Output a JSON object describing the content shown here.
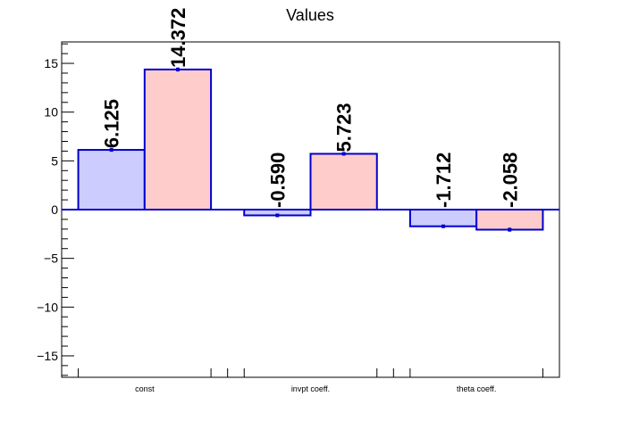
{
  "chart_data": {
    "type": "bar",
    "title": "Values",
    "categories": [
      "const",
      "invpt coeff.",
      "theta coeff."
    ],
    "series": [
      {
        "values": [
          6.125,
          -0.59,
          -1.712
        ],
        "labels": [
          "6.125",
          "-0.590",
          "-1.712"
        ],
        "errors": [
          0,
          0,
          0
        ],
        "fill": "#ccccff",
        "stroke": "#0000cc"
      },
      {
        "values": [
          14.372,
          5.723,
          -2.058
        ],
        "labels": [
          "14.372",
          "5.723",
          "-2.058"
        ],
        "errors": [
          0.2,
          0.1,
          0.2
        ],
        "fill": "#ffcccc",
        "stroke": "#0000cc"
      }
    ],
    "ylim": [
      -17.2,
      17.2
    ],
    "yticks": [
      -15,
      -10,
      -5,
      0,
      5,
      10,
      15
    ],
    "ytick_labels": [
      "−15",
      "−10",
      "−5",
      "0",
      "5",
      "10",
      "15"
    ],
    "grid": false,
    "zero_line_color": "#0000cc"
  }
}
